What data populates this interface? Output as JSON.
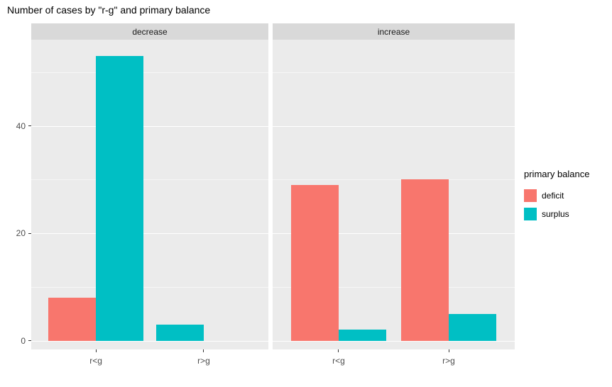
{
  "title": "Number of cases by \"r-g\" and primary balance",
  "chart_data": {
    "type": "bar",
    "title": "Number of cases by \"r-g\" and primary balance",
    "xlabel": "",
    "ylabel": "",
    "grid": true,
    "y_ticks": [
      0,
      20,
      40
    ],
    "y_minor_ticks": [
      10,
      30,
      50
    ],
    "ylim": [
      0,
      56
    ],
    "categories": [
      "r<g",
      "r>g"
    ],
    "series": [
      {
        "name": "deficit",
        "color": "#F8766D"
      },
      {
        "name": "surplus",
        "color": "#00BFC4"
      }
    ],
    "facets": [
      {
        "label": "decrease",
        "groups": [
          {
            "category": "r<g",
            "values": {
              "deficit": 8,
              "surplus": 53
            }
          },
          {
            "category": "r>g",
            "values": {
              "deficit": 0,
              "surplus": 3
            }
          }
        ]
      },
      {
        "label": "increase",
        "groups": [
          {
            "category": "r<g",
            "values": {
              "deficit": 29,
              "surplus": 2
            }
          },
          {
            "category": "r>g",
            "values": {
              "deficit": 30,
              "surplus": 5
            }
          }
        ]
      }
    ],
    "legend": {
      "title": "primary balance",
      "position": "right",
      "entries": [
        "deficit",
        "surplus"
      ]
    }
  },
  "colors": {
    "panel_background": "#EBEBEB",
    "strip_background": "#D9D9D9",
    "gridline": "#FFFFFF",
    "deficit": "#F8766D",
    "surplus": "#00BFC4"
  }
}
